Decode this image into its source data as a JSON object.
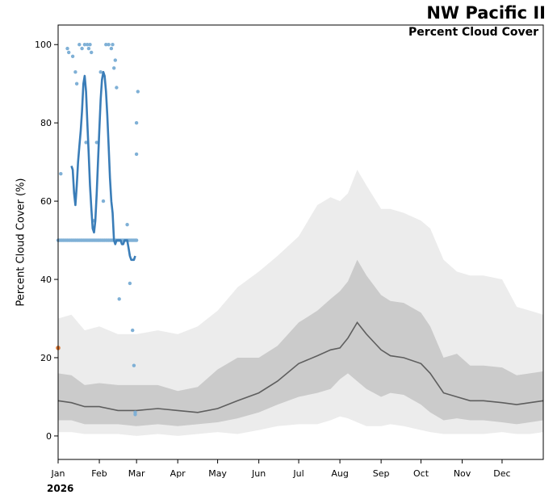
{
  "chart_data": {
    "type": "line",
    "title": "NW Pacific II",
    "subtitle": "Percent Cloud Cover",
    "ylabel": "Percent Cloud Cover (%)",
    "xlabel": "",
    "year_label": "2026",
    "ylim": [
      -6,
      105
    ],
    "xlim": [
      0,
      365
    ],
    "y_ticks": [
      0,
      20,
      40,
      60,
      80,
      100
    ],
    "x_tick_labels": [
      "Jan",
      "Feb",
      "Mar",
      "Apr",
      "May",
      "Jun",
      "Jul",
      "Aug",
      "Sep",
      "Oct",
      "Nov",
      "Dec"
    ],
    "x_tick_days": [
      0,
      31,
      59,
      90,
      120,
      151,
      181,
      212,
      243,
      273,
      304,
      334
    ],
    "grid": false,
    "colors": {
      "outer_band": "#ececec",
      "inner_band": "#cbcbcb",
      "median_line": "#5e5e5e",
      "obs_points": "#7fb0d6",
      "obs_line": "#3a7db8",
      "marker": "#e07b39"
    },
    "climatology": {
      "days": [
        0,
        10,
        20,
        31,
        45,
        59,
        75,
        90,
        105,
        120,
        135,
        151,
        165,
        181,
        195,
        205,
        212,
        218,
        225,
        232,
        243,
        250,
        260,
        273,
        280,
        290,
        300,
        310,
        320,
        334,
        345,
        355,
        365
      ],
      "p05": [
        1,
        1,
        0.5,
        0.5,
        0.5,
        0,
        0.5,
        0,
        0.5,
        1,
        0.5,
        1.5,
        2.5,
        3,
        3,
        4,
        5,
        4.5,
        3.5,
        2.5,
        2.5,
        3,
        2.5,
        1.5,
        1,
        0.5,
        0.5,
        0.5,
        0.5,
        1,
        0.5,
        0.5,
        1
      ],
      "p25": [
        4,
        4,
        3,
        3,
        3,
        2.5,
        3,
        2.5,
        3,
        3.5,
        4.5,
        6,
        8,
        10,
        11,
        12,
        14.5,
        16,
        14,
        12,
        10,
        11,
        10.5,
        8,
        6,
        4,
        4.5,
        4,
        4,
        3.5,
        3,
        3.5,
        4
      ],
      "median": [
        9,
        8.5,
        7.5,
        7.5,
        6.5,
        6.5,
        7,
        6.5,
        6,
        7,
        9,
        11,
        14,
        18.5,
        20.5,
        22,
        22.5,
        25,
        29,
        26,
        22,
        20.5,
        20,
        18.5,
        16,
        11,
        10,
        9,
        9,
        8.5,
        8,
        8.5,
        9
      ],
      "p75": [
        16,
        15.5,
        13,
        13.5,
        13,
        13,
        13,
        11.5,
        12.5,
        17,
        20,
        20,
        23,
        29,
        32,
        35,
        37,
        39.5,
        45,
        41,
        36,
        34.5,
        34,
        31.5,
        28,
        20,
        21,
        18,
        18,
        17.5,
        15.5,
        16,
        16.5
      ],
      "p95": [
        30,
        31,
        27,
        28,
        26,
        26,
        27,
        26,
        28,
        32,
        38,
        42,
        46,
        51,
        59,
        61,
        60,
        62,
        68,
        64,
        58,
        58,
        57,
        55,
        53,
        45,
        42,
        41,
        41,
        40,
        33,
        32,
        31
      ]
    },
    "observations": {
      "scatter_days": [
        0,
        1,
        2,
        3,
        4,
        5,
        6,
        7,
        8,
        9,
        10,
        11,
        12,
        13,
        14,
        15,
        16,
        17,
        18,
        19,
        20,
        21,
        22,
        23,
        24,
        25,
        26,
        27,
        28,
        29,
        30,
        31,
        32,
        33,
        34,
        35,
        36,
        37,
        38,
        39,
        40,
        41,
        42,
        43,
        44,
        45,
        46,
        47,
        48,
        49,
        50,
        51,
        52,
        53,
        54,
        55,
        56,
        57,
        58,
        59,
        7,
        8,
        11,
        13,
        14,
        16,
        18,
        20,
        22,
        23,
        24,
        25,
        29,
        32,
        36,
        38,
        40,
        41,
        42,
        43,
        44,
        52,
        54,
        56,
        57,
        58,
        59,
        59,
        60,
        2,
        21,
        27,
        34,
        46,
        58
      ],
      "scatter_values": [
        50,
        50,
        50,
        50,
        50,
        50,
        50,
        50,
        50,
        50,
        50,
        50,
        50,
        50,
        50,
        50,
        50,
        50,
        50,
        50,
        50,
        50,
        50,
        50,
        50,
        50,
        50,
        50,
        50,
        50,
        50,
        50,
        50,
        50,
        50,
        50,
        50,
        50,
        50,
        50,
        50,
        50,
        50,
        50,
        50,
        50,
        50,
        50,
        50,
        50,
        50,
        50,
        50,
        50,
        50,
        50,
        50,
        50,
        50,
        50,
        99,
        98,
        97,
        93,
        90,
        100,
        99,
        100,
        100,
        99,
        100,
        98,
        75,
        93,
        100,
        100,
        99,
        100,
        94,
        96,
        89,
        54,
        39,
        27,
        18,
        6,
        80,
        72,
        88,
        67,
        75,
        55,
        60,
        35,
        5.5
      ],
      "line_days": [
        10,
        11,
        12,
        13,
        14,
        15,
        16,
        17,
        18,
        19,
        20,
        21,
        22,
        23,
        24,
        25,
        26,
        27,
        28,
        29,
        30,
        31,
        32,
        33,
        34,
        35,
        36,
        37,
        38,
        39,
        40,
        41,
        42,
        43,
        44,
        45,
        46,
        47,
        48,
        49,
        50,
        51,
        52,
        53,
        54,
        55,
        56,
        57,
        58
      ],
      "line_values": [
        69,
        68,
        62,
        59,
        64,
        70,
        74,
        78,
        83,
        90,
        92,
        88,
        80,
        72,
        64,
        58,
        53,
        52,
        55,
        62,
        70,
        78,
        86,
        91,
        93,
        92,
        88,
        82,
        74,
        66,
        60,
        57,
        50,
        49,
        50,
        50,
        50,
        50,
        49,
        49,
        50,
        50,
        50,
        48,
        46,
        45,
        45,
        45,
        46
      ],
      "extra_marker": {
        "day": 0,
        "value": 22.5
      }
    }
  }
}
